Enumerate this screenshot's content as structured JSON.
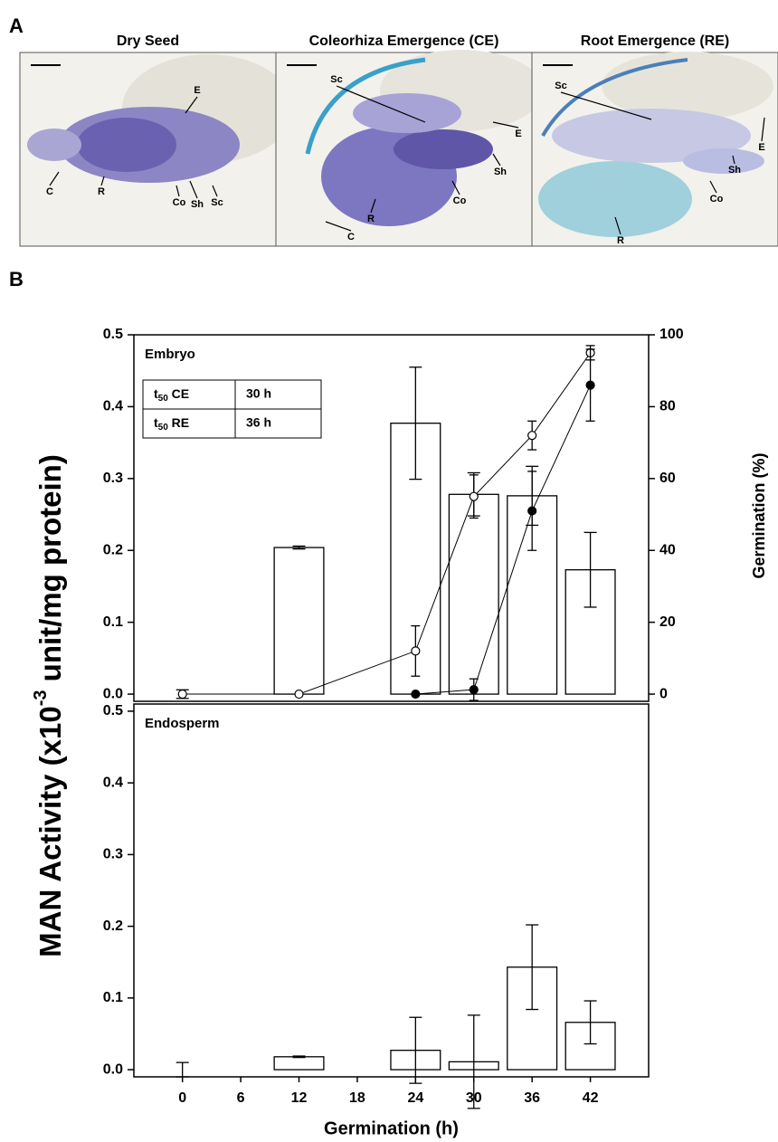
{
  "panel_a": {
    "label": "A",
    "images": [
      {
        "title": "Dry Seed",
        "labels": [
          "E",
          "C",
          "R",
          "Co",
          "Sh",
          "Sc"
        ]
      },
      {
        "title": "Coleorhiza Emergence (CE)",
        "labels": [
          "Sc",
          "E",
          "Sh",
          "Co",
          "R",
          "C"
        ]
      },
      {
        "title": "Root Emergence (RE)",
        "labels": [
          "Sc",
          "E",
          "Sh",
          "Co",
          "R"
        ]
      }
    ]
  },
  "panel_b_label": "B",
  "chart_data": [
    {
      "type": "bar",
      "title": "Embryo",
      "ylabel": [
        "MAN Activity (x10",
        "-3",
        " unit/mg protein)"
      ],
      "y2label": "Germination (%)",
      "x": [
        0,
        6,
        12,
        18,
        24,
        30,
        36,
        42
      ],
      "values": [
        0,
        null,
        0.204,
        null,
        0.377,
        0.278,
        0.276,
        0.173
      ],
      "errors": [
        0.006,
        null,
        0.002,
        null,
        0.078,
        0.03,
        0.041,
        0.052
      ],
      "color": "#ffffff",
      "xlim": [
        -5,
        48
      ],
      "ylim": [
        -0.01,
        0.5
      ],
      "yticks": [
        {
          "value": 0,
          "label": "0.0"
        },
        0.1,
        0.2,
        0.3,
        0.4,
        0.5
      ],
      "y2lim": [
        -2,
        100
      ],
      "y2ticks": [
        0,
        20,
        40,
        60,
        80,
        100
      ],
      "lines": [
        {
          "marker": "open",
          "axis": "y2",
          "x": [
            0,
            12,
            24,
            30,
            36,
            42
          ],
          "values": [
            0,
            0,
            12,
            55,
            72,
            95
          ],
          "errors": [
            0,
            0,
            7,
            6,
            4,
            2
          ]
        },
        {
          "marker": "filled",
          "axis": "y2",
          "x": [
            24,
            30,
            36,
            42
          ],
          "values": [
            0,
            1.25,
            51,
            86
          ],
          "errors": [
            0,
            3,
            11,
            10
          ]
        }
      ],
      "inset_table": [
        [
          {
            "main": "t",
            "sub": "50",
            "rest": " CE"
          },
          "30 h"
        ],
        [
          {
            "main": "t",
            "sub": "50",
            "rest": " RE"
          },
          "36 h"
        ]
      ]
    },
    {
      "type": "bar",
      "title": "Endosperm",
      "xlabel": "Germination (h)",
      "x": [
        0,
        6,
        12,
        18,
        24,
        30,
        36,
        42
      ],
      "values": [
        0,
        null,
        0.018,
        null,
        0.027,
        0.011,
        0.143,
        0.066
      ],
      "errors": [
        0.01,
        null,
        0.001,
        null,
        0.046,
        0.065,
        0.059,
        0.03
      ],
      "color": "#ffffff",
      "xlim": [
        -5,
        48
      ],
      "xticks": [
        0,
        6,
        12,
        18,
        24,
        30,
        36,
        42
      ],
      "ylim": [
        -0.01,
        0.51
      ],
      "yticks": [
        {
          "value": 0,
          "label": "0.0"
        },
        0.1,
        0.2,
        0.3,
        0.4,
        0.5
      ]
    }
  ]
}
